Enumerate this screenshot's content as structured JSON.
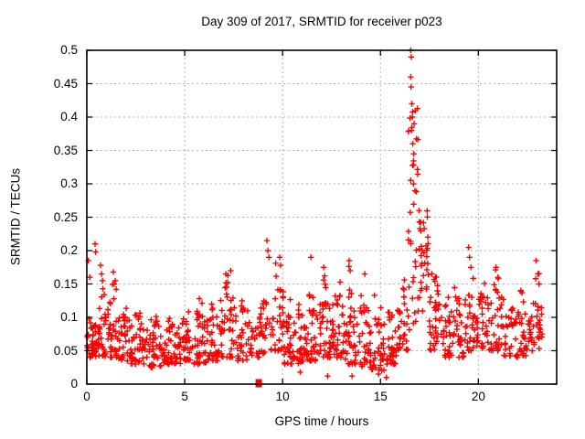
{
  "chart_data": {
    "type": "scatter",
    "title": "Day 309 of 2017, SRMTID for receiver p023",
    "xlabel": "GPS time / hours",
    "ylabel": "SRMTID / TECUs",
    "xlim": [
      0,
      24
    ],
    "ylim": [
      0,
      0.5
    ],
    "xticks": [
      0,
      5,
      10,
      15,
      20
    ],
    "xtick_labels": [
      "0",
      "5",
      "10",
      "15",
      "20"
    ],
    "yticks": [
      0,
      0.05,
      0.1,
      0.15,
      0.2,
      0.25,
      0.3,
      0.35,
      0.4,
      0.45,
      0.5
    ],
    "ytick_labels": [
      "0",
      "0.05",
      "0.1",
      "0.15",
      "0.2",
      "0.25",
      "0.3",
      "0.35",
      "0.4",
      "0.45",
      "0.5"
    ],
    "grid": true,
    "grid_color": "#b3b3b3",
    "legend": "none",
    "marker": "plus",
    "marker_color": "#ff0000",
    "border_color": "#000000",
    "seed": 2017309,
    "bins": [
      {
        "x0": 0.0,
        "x1": 0.3,
        "n": 20,
        "lo": 0.04,
        "hi": 0.1
      },
      {
        "x0": 0.3,
        "x1": 0.6,
        "n": 22,
        "lo": 0.04,
        "hi": 0.1
      },
      {
        "x0": 0.6,
        "x1": 1.0,
        "n": 25,
        "lo": 0.04,
        "hi": 0.12,
        "tail": 0.18
      },
      {
        "x0": 1.0,
        "x1": 1.6,
        "n": 30,
        "lo": 0.04,
        "hi": 0.12,
        "tail": 0.17
      },
      {
        "x0": 1.6,
        "x1": 2.2,
        "n": 32,
        "lo": 0.035,
        "hi": 0.1,
        "tail": 0.13
      },
      {
        "x0": 2.2,
        "x1": 3.0,
        "n": 40,
        "lo": 0.03,
        "hi": 0.09,
        "tail": 0.11
      },
      {
        "x0": 3.0,
        "x1": 3.8,
        "n": 40,
        "lo": 0.025,
        "hi": 0.09,
        "tail": 0.105
      },
      {
        "x0": 3.8,
        "x1": 4.6,
        "n": 40,
        "lo": 0.03,
        "hi": 0.085,
        "tail": 0.1
      },
      {
        "x0": 4.6,
        "x1": 5.4,
        "n": 40,
        "lo": 0.03,
        "hi": 0.09,
        "tail": 0.11
      },
      {
        "x0": 5.4,
        "x1": 6.2,
        "n": 40,
        "lo": 0.03,
        "hi": 0.1,
        "tail": 0.13
      },
      {
        "x0": 6.2,
        "x1": 6.8,
        "n": 30,
        "lo": 0.035,
        "hi": 0.1,
        "tail": 0.12
      },
      {
        "x0": 6.8,
        "x1": 7.6,
        "n": 35,
        "lo": 0.04,
        "hi": 0.13,
        "tail": 0.17
      },
      {
        "x0": 7.6,
        "x1": 8.3,
        "n": 30,
        "lo": 0.035,
        "hi": 0.11,
        "tail": 0.13
      },
      {
        "x0": 8.3,
        "x1": 8.8,
        "n": 20,
        "lo": 0.04,
        "hi": 0.1
      },
      {
        "x0": 8.8,
        "x1": 9.45,
        "n": 26,
        "lo": 0.045,
        "hi": 0.12,
        "tail": 0.22
      },
      {
        "x0": 9.45,
        "x1": 10.05,
        "n": 30,
        "lo": 0.05,
        "hi": 0.14,
        "tail": 0.19
      },
      {
        "x0": 10.05,
        "x1": 10.6,
        "n": 30,
        "lo": 0.03,
        "hi": 0.1,
        "tail": 0.13
      },
      {
        "x0": 10.6,
        "x1": 11.2,
        "n": 32,
        "lo": 0.03,
        "hi": 0.1,
        "tail": 0.12
      },
      {
        "x0": 11.2,
        "x1": 11.8,
        "n": 32,
        "lo": 0.035,
        "hi": 0.11,
        "tail": 0.19
      },
      {
        "x0": 11.8,
        "x1": 12.5,
        "n": 35,
        "lo": 0.04,
        "hi": 0.12,
        "tail": 0.175
      },
      {
        "x0": 12.5,
        "x1": 13.2,
        "n": 35,
        "lo": 0.04,
        "hi": 0.12,
        "tail": 0.16
      },
      {
        "x0": 13.2,
        "x1": 13.8,
        "n": 32,
        "lo": 0.03,
        "hi": 0.11,
        "tail": 0.185
      },
      {
        "x0": 13.8,
        "x1": 14.5,
        "n": 32,
        "lo": 0.025,
        "hi": 0.11,
        "tail": 0.165
      },
      {
        "x0": 14.5,
        "x1": 15.2,
        "n": 32,
        "lo": 0.02,
        "hi": 0.09,
        "tail": 0.14
      },
      {
        "x0": 15.2,
        "x1": 15.8,
        "n": 30,
        "lo": 0.03,
        "hi": 0.1,
        "tail": 0.13
      },
      {
        "x0": 15.8,
        "x1": 16.42,
        "n": 30,
        "lo": 0.05,
        "hi": 0.13,
        "tail": 0.165
      },
      {
        "x0": 16.42,
        "x1": 17.0,
        "n": 42,
        "lo": 0.08,
        "hi": 0.42,
        "col": true
      },
      {
        "x0": 17.0,
        "x1": 17.45,
        "n": 30,
        "lo": 0.07,
        "hi": 0.26,
        "col": true
      },
      {
        "x0": 17.45,
        "x1": 18.0,
        "n": 30,
        "lo": 0.05,
        "hi": 0.15,
        "tail": 0.17
      },
      {
        "x0": 18.0,
        "x1": 18.6,
        "n": 30,
        "lo": 0.04,
        "hi": 0.13
      },
      {
        "x0": 18.6,
        "x1": 19.3,
        "n": 30,
        "lo": 0.04,
        "hi": 0.12,
        "tail": 0.145
      },
      {
        "x0": 19.3,
        "x1": 19.9,
        "n": 28,
        "lo": 0.05,
        "hi": 0.13,
        "tail": 0.21
      },
      {
        "x0": 19.9,
        "x1": 20.6,
        "n": 32,
        "lo": 0.05,
        "hi": 0.13,
        "tail": 0.155
      },
      {
        "x0": 20.6,
        "x1": 21.3,
        "n": 32,
        "lo": 0.05,
        "hi": 0.14,
        "tail": 0.175
      },
      {
        "x0": 21.3,
        "x1": 22.0,
        "n": 30,
        "lo": 0.04,
        "hi": 0.11,
        "tail": 0.13
      },
      {
        "x0": 22.0,
        "x1": 22.6,
        "n": 28,
        "lo": 0.04,
        "hi": 0.11,
        "tail": 0.15
      },
      {
        "x0": 22.6,
        "x1": 23.3,
        "n": 30,
        "lo": 0.05,
        "hi": 0.12,
        "tail": 0.19
      }
    ],
    "outliers": [
      [
        0.08,
        0.185
      ],
      [
        0.15,
        0.16
      ],
      [
        0.42,
        0.21
      ],
      [
        0.45,
        0.198
      ],
      [
        0.7,
        0.178
      ],
      [
        0.75,
        0.165
      ],
      [
        0.8,
        0.155
      ],
      [
        1.35,
        0.168
      ],
      [
        1.45,
        0.155
      ],
      [
        1.5,
        0.142
      ],
      [
        5.75,
        0.128
      ],
      [
        7.1,
        0.165
      ],
      [
        7.2,
        0.152
      ],
      [
        7.35,
        0.17
      ],
      [
        9.2,
        0.215
      ],
      [
        9.25,
        0.2
      ],
      [
        9.3,
        0.19
      ],
      [
        9.85,
        0.19
      ],
      [
        9.9,
        0.178
      ],
      [
        11.45,
        0.19
      ],
      [
        12.1,
        0.175
      ],
      [
        12.15,
        0.162
      ],
      [
        13.4,
        0.185
      ],
      [
        13.45,
        0.17
      ],
      [
        14.2,
        0.165
      ],
      [
        16.55,
        0.5
      ],
      [
        16.57,
        0.49
      ],
      [
        16.55,
        0.46
      ],
      [
        16.56,
        0.445
      ],
      [
        16.6,
        0.42
      ],
      [
        16.63,
        0.4
      ],
      [
        16.58,
        0.38
      ],
      [
        16.65,
        0.36
      ],
      [
        16.7,
        0.345
      ],
      [
        19.5,
        0.205
      ],
      [
        19.55,
        0.19
      ],
      [
        19.62,
        0.175
      ],
      [
        20.9,
        0.175
      ],
      [
        21.0,
        0.16
      ],
      [
        22.95,
        0.185
      ],
      [
        23.05,
        0.165
      ],
      [
        23.1,
        0.15
      ],
      [
        10.9,
        0.018
      ],
      [
        12.3,
        0.012
      ],
      [
        13.55,
        0.012
      ],
      [
        14.9,
        0.015
      ],
      [
        15.3,
        0.01
      ]
    ],
    "zero_marker": {
      "x": 8.78,
      "y": 0
    }
  }
}
